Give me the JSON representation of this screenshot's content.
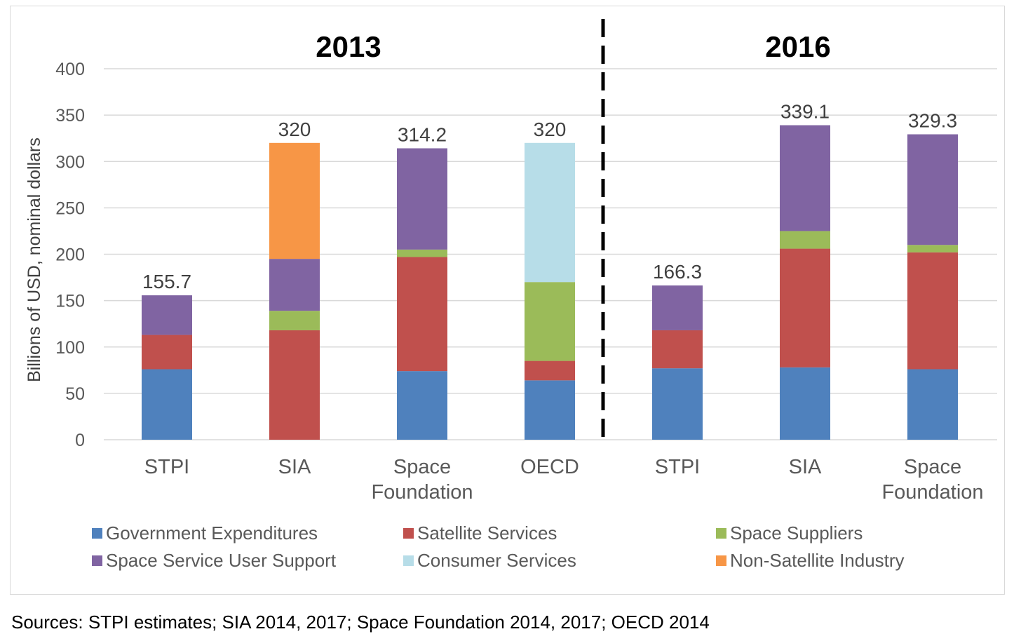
{
  "chart_data": {
    "type": "bar",
    "stacked": true,
    "ylabel": "Billions of USD, nominal dollars",
    "ylim": [
      0,
      400
    ],
    "yticks": [
      0,
      50,
      100,
      150,
      200,
      250,
      300,
      350,
      400
    ],
    "grid": true,
    "legend_position": "bottom",
    "groups": [
      {
        "title": "2013",
        "categories": [
          "STPI",
          "SIA",
          "Space Foundation",
          "OECD"
        ]
      },
      {
        "title": "2016",
        "categories": [
          "STPI",
          "SIA",
          "Space Foundation"
        ]
      }
    ],
    "categories": [
      "STPI",
      "SIA",
      "Space Foundation",
      "OECD",
      "STPI",
      "SIA",
      "Space Foundation"
    ],
    "totals": [
      "155.7",
      "320",
      "314.2",
      "320",
      "166.3",
      "339.1",
      "329.3"
    ],
    "series": [
      {
        "name": "Government Expenditures",
        "color": "#4f81bd",
        "values": [
          76,
          0,
          74,
          64,
          77,
          78,
          76
        ]
      },
      {
        "name": "Satellite Services",
        "color": "#c0504d",
        "values": [
          37,
          118,
          123,
          21,
          41,
          128,
          126
        ]
      },
      {
        "name": "Space Suppliers",
        "color": "#9bbb59",
        "values": [
          0,
          21,
          8,
          85,
          0,
          19,
          8
        ]
      },
      {
        "name": "Space Service User Support",
        "color": "#8064a2",
        "values": [
          42.7,
          56,
          109.2,
          0,
          48.3,
          114.1,
          119.3
        ]
      },
      {
        "name": "Consumer Services",
        "color": "#b7dde8",
        "values": [
          0,
          0,
          0,
          150,
          0,
          0,
          0
        ]
      },
      {
        "name": "Non-Satellite Industry",
        "color": "#f79646",
        "values": [
          0,
          125,
          0,
          0,
          0,
          0,
          0
        ]
      }
    ]
  },
  "sources_note": "Sources: STPI estimates; SIA 2014, 2017; Space Foundation 2014, 2017; OECD 2014"
}
